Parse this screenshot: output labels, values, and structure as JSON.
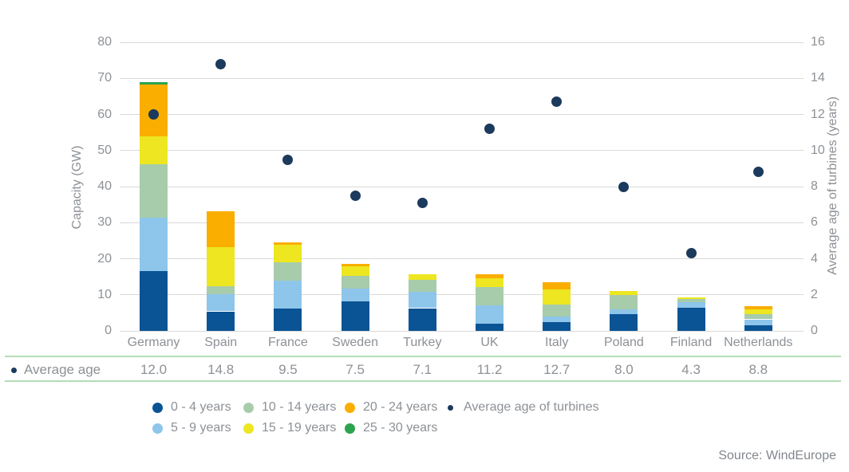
{
  "chart_data": {
    "type": "bar",
    "subtype": "stacked-bar-with-scatter-overlay",
    "categories": [
      "Germany",
      "Spain",
      "France",
      "Sweden",
      "Turkey",
      "UK",
      "Italy",
      "Poland",
      "Finland",
      "Netherlands"
    ],
    "series": [
      {
        "name": "0 - 4 years",
        "color": "#0a5394",
        "values": [
          16.6,
          5.4,
          6.1,
          8.1,
          6.3,
          2.0,
          2.4,
          4.7,
          6.5,
          1.6
        ]
      },
      {
        "name": "5 - 9 years",
        "color": "#8ec5ea",
        "values": [
          14.8,
          4.8,
          7.8,
          3.7,
          4.5,
          5.0,
          1.5,
          1.3,
          1.5,
          1.6
        ]
      },
      {
        "name": "10 - 14 years",
        "color": "#a7ccab",
        "values": [
          14.7,
          2.2,
          5.1,
          3.5,
          3.3,
          5.2,
          3.4,
          3.9,
          0.9,
          1.5
        ]
      },
      {
        "name": "15 - 19 years",
        "color": "#ede621",
        "values": [
          7.9,
          10.8,
          4.8,
          2.6,
          1.6,
          2.4,
          4.1,
          1.2,
          0.5,
          1.2
        ]
      },
      {
        "name": "20 - 24 years",
        "color": "#f9ae00",
        "values": [
          14.2,
          10.0,
          0.7,
          0.7,
          0.0,
          1.1,
          2.0,
          0.0,
          0.0,
          1.0
        ]
      },
      {
        "name": "25 - 30 years",
        "color": "#2ca34f",
        "values": [
          0.7,
          0.0,
          0.0,
          0.0,
          0.0,
          0.0,
          0.0,
          0.0,
          0.0,
          0.0
        ]
      }
    ],
    "scatter": {
      "name": "Average age of turbines",
      "color": "#1b3a5c",
      "axis": "right",
      "values": [
        12.0,
        14.8,
        9.5,
        7.5,
        7.1,
        11.2,
        12.7,
        8.0,
        4.3,
        8.8
      ]
    },
    "left_axis": {
      "label": "Capacity (GW)",
      "min": 0,
      "max": 80,
      "ticks": [
        0,
        10,
        20,
        30,
        40,
        50,
        60,
        70,
        80
      ]
    },
    "right_axis": {
      "label": "Average age of turbines (years)",
      "min": 0,
      "max": 16,
      "ticks": [
        0,
        2,
        4,
        6,
        8,
        10,
        12,
        14,
        16
      ]
    },
    "grid": "horizontal"
  },
  "table": {
    "row_label": "Average age",
    "values": [
      "12.0",
      "14.8",
      "9.5",
      "7.5",
      "7.1",
      "11.2",
      "12.7",
      "8.0",
      "4.3",
      "8.8"
    ]
  },
  "legend": {
    "items": [
      {
        "label": "0 - 4 years",
        "color": "#0a5394",
        "row": 0,
        "col": 0,
        "small": false
      },
      {
        "label": "5 - 9 years",
        "color": "#8ec5ea",
        "row": 1,
        "col": 0,
        "small": false
      },
      {
        "label": "10 - 14 years",
        "color": "#a7ccab",
        "row": 0,
        "col": 1,
        "small": false
      },
      {
        "label": "15 - 19 years",
        "color": "#ede621",
        "row": 1,
        "col": 1,
        "small": false
      },
      {
        "label": "20 - 24 years",
        "color": "#f9ae00",
        "row": 0,
        "col": 2,
        "small": false
      },
      {
        "label": "25 - 30 years",
        "color": "#2ca34f",
        "row": 1,
        "col": 2,
        "small": false
      },
      {
        "label": "Average age of turbines",
        "color": "#1b3a5c",
        "row": 0,
        "col": 3,
        "small": true
      }
    ]
  },
  "source": "Source: WindEurope"
}
